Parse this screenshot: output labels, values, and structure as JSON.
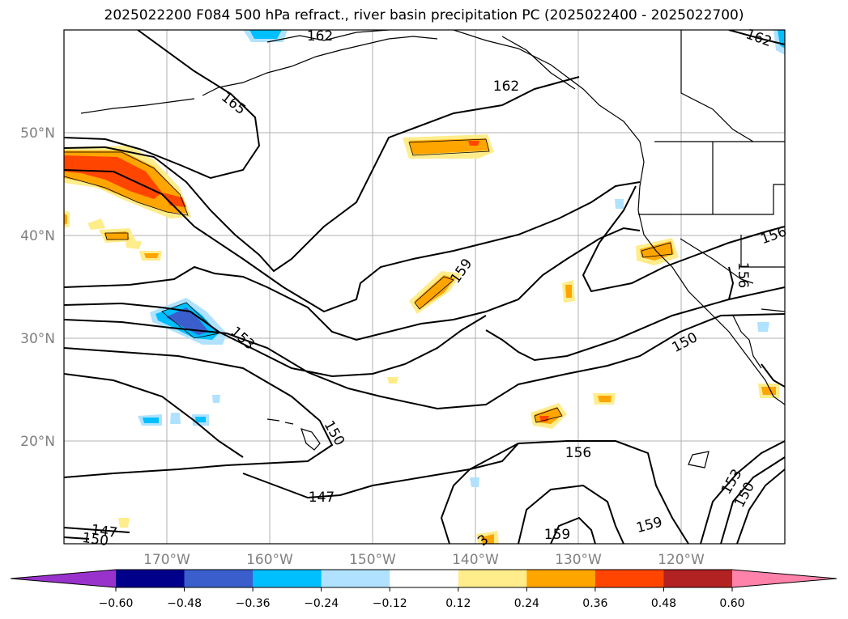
{
  "title": "2025022200 F084 500 hPa refract., river basin precipitation PC (2025022400 - 2025022700)",
  "lat_labels": [
    "50°N",
    "40°N",
    "30°N",
    "20°N"
  ],
  "lon_labels": [
    "170°W",
    "160°W",
    "150°W",
    "140°W",
    "130°W",
    "120°W"
  ],
  "contour_labels": [
    "162",
    "162",
    "162",
    "165",
    "159",
    "153",
    "150",
    "150",
    "156",
    "156",
    "147",
    "147",
    "150",
    "159",
    "159",
    "153",
    "150",
    "156",
    "3"
  ],
  "colorbar": {
    "ticks": [
      "−0.60",
      "−0.48",
      "−0.36",
      "−0.24",
      "−0.12",
      "0.12",
      "0.24",
      "0.36",
      "0.48",
      "0.60"
    ],
    "colors": [
      "#9932cc",
      "#00008b",
      "#3a5fcd",
      "#00bfff",
      "#b0e2ff",
      "#ffffff",
      "#ffec8b",
      "#ffa500",
      "#ff4500",
      "#b22222",
      "#ff82ab"
    ]
  },
  "map_colors": {
    "pos_light": "#ffec8b",
    "pos_mid": "#ffa500",
    "pos_high": "#ff4500",
    "neg_light": "#b0e2ff",
    "neg_mid": "#00bfff",
    "neg_high": "#3a5fcd"
  }
}
